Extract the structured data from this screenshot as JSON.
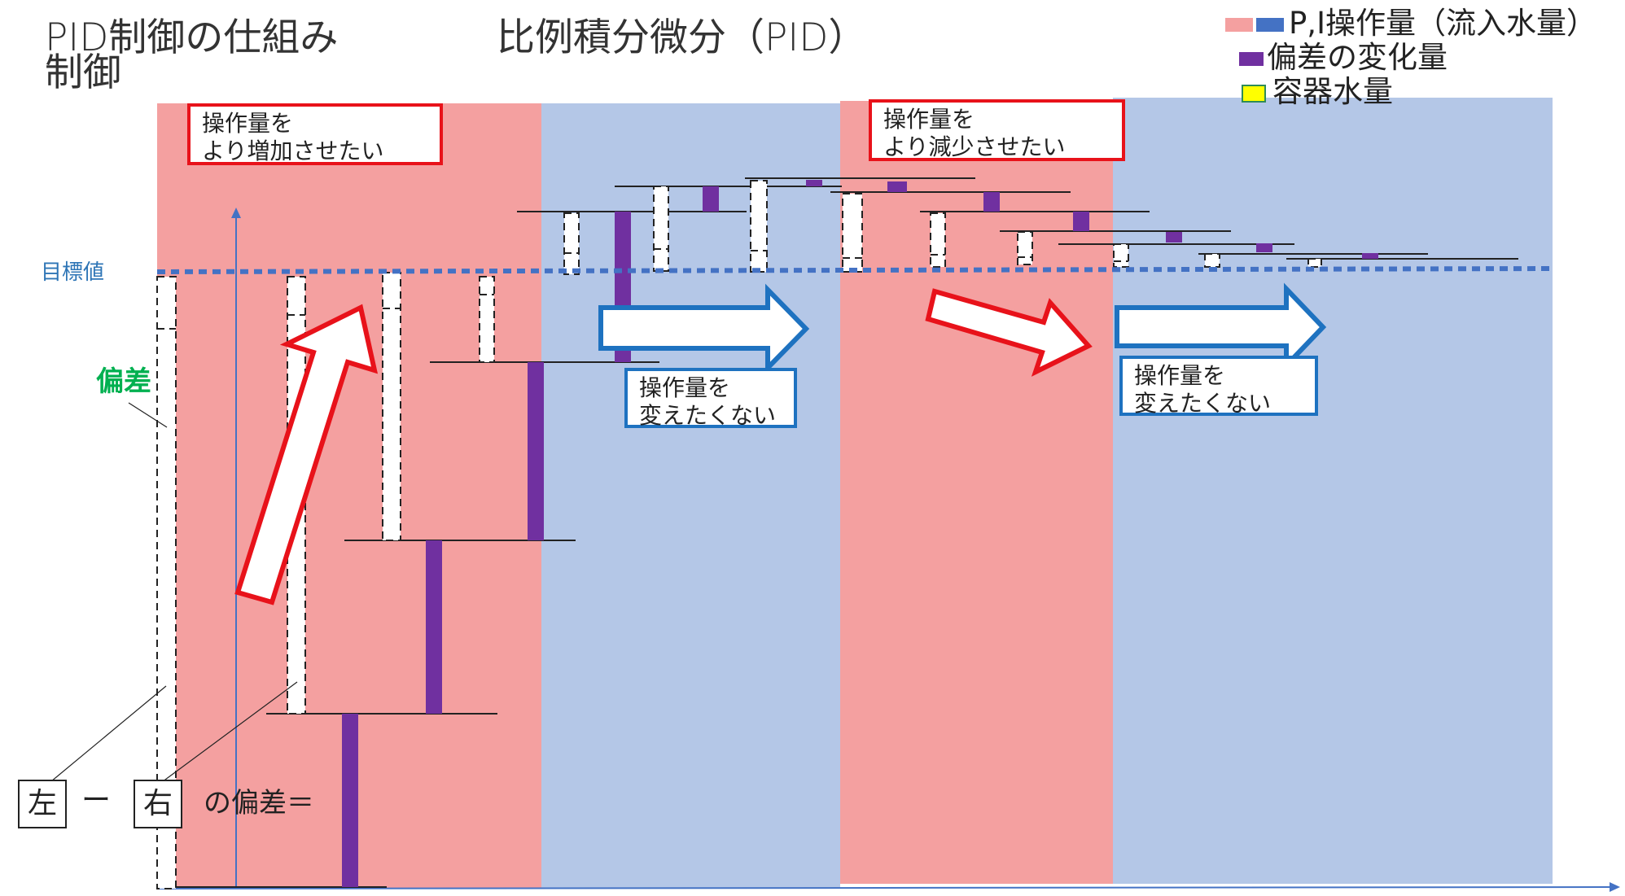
{
  "title": "PID制御の仕組み",
  "title_line2": "制御",
  "subtitle": "比例積分微分（PID）",
  "legend": {
    "items": [
      {
        "label": "P,I操作量（流入水量）",
        "colors": [
          "#f4a0a0",
          "#4472c4"
        ]
      },
      {
        "label": "偏差の変化量",
        "colors": [
          "#7030a0"
        ]
      },
      {
        "label": "容器水量",
        "colors": [
          "#ffff00"
        ]
      }
    ]
  },
  "target_label": "目標値",
  "deviation_label": "偏差",
  "callouts": {
    "increase": [
      "操作量を",
      "より増加させたい"
    ],
    "decrease": [
      "操作量を",
      "より減少させたい"
    ],
    "keep1": [
      "操作量を",
      "変えたくない"
    ],
    "keep2": [
      "操作量を",
      "変えたくない"
    ]
  },
  "formula": {
    "left": "左",
    "minus": "ー",
    "right": "右",
    "suffix": "の偏差＝"
  },
  "colors": {
    "red_zone": "#f4a0a0",
    "blue_zone": "#b4c7e7",
    "purple": "#7030a0",
    "target_line": "#4472c4",
    "arrow_red": "#e8121a",
    "arrow_blue": "#1e72c0",
    "deviation_text": "#00b050"
  }
}
